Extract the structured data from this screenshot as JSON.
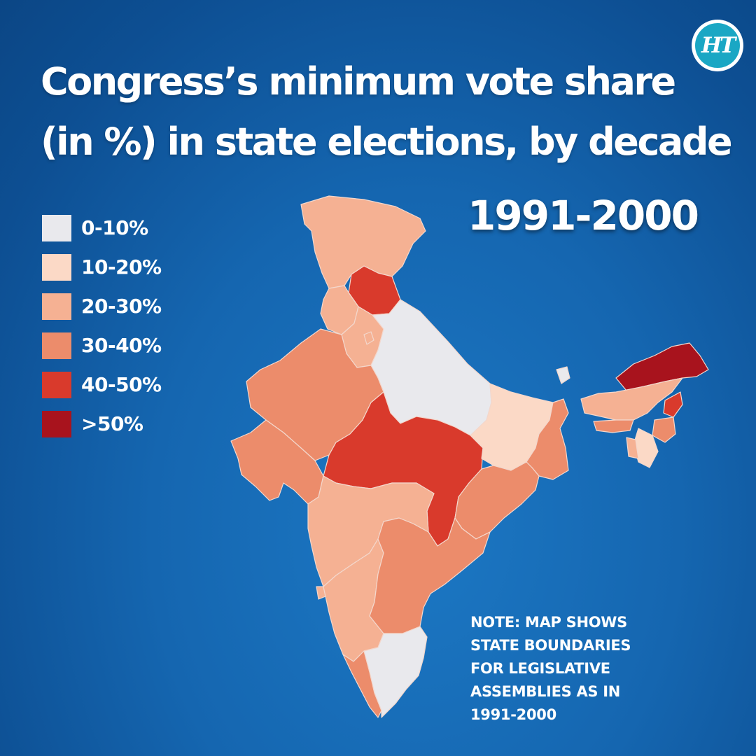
{
  "title_lines": [
    "Congress’s minimum vote share",
    "(in %) in state elections, by decade"
  ],
  "decade": "1991-2000",
  "logo": {
    "text": "HT"
  },
  "colors": {
    "0-10": "#e9e9ed",
    "10-20": "#fbd9c6",
    "20-30": "#f5b193",
    "30-40": "#ec8c6b",
    "40-50": "#d93a2c",
    "50plus": "#a8131d"
  },
  "legend": [
    {
      "label": "0-10%",
      "color": "#e9e9ed"
    },
    {
      "label": "10-20%",
      "color": "#fbd9c6"
    },
    {
      "label": "20-30%",
      "color": "#f5b193"
    },
    {
      "label": "30-40%",
      "color": "#ec8c6b"
    },
    {
      "label": "40-50%",
      "color": "#d93a2c"
    },
    {
      "label": ">50%",
      "color": "#a8131d"
    }
  ],
  "note_lines": [
    "NOTE: MAP SHOWS",
    "STATE BOUNDARIES",
    "FOR LEGISLATIVE",
    "ASSEMBLIES AS IN",
    "1991-2000"
  ],
  "map_regions": [
    {
      "state": "Jammu and Kashmir",
      "bin": "20-30%"
    },
    {
      "state": "Himachal Pradesh",
      "bin": "40-50%"
    },
    {
      "state": "Punjab",
      "bin": "20-30%"
    },
    {
      "state": "Haryana",
      "bin": "20-30%"
    },
    {
      "state": "Delhi",
      "bin": "20-30%"
    },
    {
      "state": "Uttar Pradesh",
      "bin": "0-10%"
    },
    {
      "state": "Rajasthan",
      "bin": "30-40%"
    },
    {
      "state": "Gujarat",
      "bin": "30-40%"
    },
    {
      "state": "Madhya Pradesh",
      "bin": "40-50%"
    },
    {
      "state": "Bihar",
      "bin": "10-20%"
    },
    {
      "state": "West Bengal",
      "bin": "30-40%"
    },
    {
      "state": "Orissa",
      "bin": "30-40%"
    },
    {
      "state": "Maharashtra",
      "bin": "20-30%"
    },
    {
      "state": "Goa",
      "bin": "20-30%"
    },
    {
      "state": "Karnataka",
      "bin": "20-30%"
    },
    {
      "state": "Andhra Pradesh",
      "bin": "30-40%"
    },
    {
      "state": "Kerala",
      "bin": "30-40%"
    },
    {
      "state": "Tamil Nadu",
      "bin": "0-10%"
    },
    {
      "state": "Sikkim",
      "bin": "0-10%"
    },
    {
      "state": "Arunachal Pradesh",
      "bin": ">50%"
    },
    {
      "state": "Assam",
      "bin": "20-30%"
    },
    {
      "state": "Meghalaya",
      "bin": "30-40%"
    },
    {
      "state": "Nagaland",
      "bin": "40-50%"
    },
    {
      "state": "Manipur",
      "bin": "30-40%"
    },
    {
      "state": "Mizoram",
      "bin": "10-20%"
    },
    {
      "state": "Tripura",
      "bin": "20-30%"
    }
  ]
}
